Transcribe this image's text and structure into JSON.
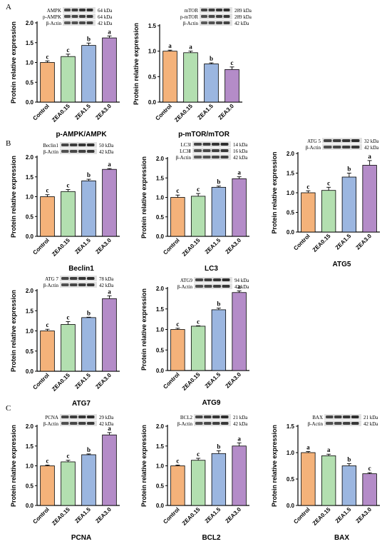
{
  "panel_letters": [
    "A",
    "B",
    "C"
  ],
  "common": {
    "ylabel": "Protein relative expression",
    "categories": [
      "Control",
      "ZEA0.15",
      "ZEA1.5",
      "ZEA3.0"
    ],
    "bar_colors": [
      "#f4b27a",
      "#b3dfb0",
      "#9bb6e0",
      "#b48cc8"
    ]
  },
  "chart_data": [
    {
      "type": "bar",
      "panel": "A",
      "title": "p-AMPK/AMPK",
      "categories": [
        "Control",
        "ZEA0.15",
        "ZEA1.5",
        "ZEA3.0"
      ],
      "values": [
        1.0,
        1.15,
        1.43,
        1.62
      ],
      "errors": [
        0.04,
        0.06,
        0.06,
        0.05
      ],
      "letters": [
        "c",
        "c",
        "b",
        "a"
      ],
      "ylim": [
        0,
        2.0
      ],
      "yticks": [
        "0.0",
        "0.5",
        "1.0",
        "1.5",
        "2.0"
      ],
      "xlabel": "",
      "ylabel": "Protein relative expression",
      "blot": {
        "rows": [
          "AMPK",
          "p-AMPK",
          "β-Actin"
        ],
        "kda": [
          "64 kDa",
          "64 kDa",
          "42 kDa"
        ]
      }
    },
    {
      "type": "bar",
      "panel": "A",
      "title": "p-mTOR/mTOR",
      "categories": [
        "Control",
        "ZEA0.15",
        "ZEA1.5",
        "ZEA3.0"
      ],
      "values": [
        1.0,
        0.97,
        0.75,
        0.64
      ],
      "errors": [
        0.02,
        0.03,
        0.02,
        0.05
      ],
      "letters": [
        "a",
        "a",
        "b",
        "c"
      ],
      "ylim": [
        0,
        1.5
      ],
      "yticks": [
        "0.0",
        "0.5",
        "1.0",
        "1.5"
      ],
      "xlabel": "",
      "ylabel": "Protein relative expression",
      "blot": {
        "rows": [
          "mTOR",
          "p-mTOR",
          "β-Actin"
        ],
        "kda": [
          "289 kDa",
          "289 kDa",
          "42 kDa"
        ]
      }
    },
    {
      "type": "bar",
      "panel": "B",
      "title": "Beclin1",
      "categories": [
        "Control",
        "ZEA0.15",
        "ZEA1.5",
        "ZEA3.0"
      ],
      "values": [
        1.0,
        1.13,
        1.4,
        1.69
      ],
      "errors": [
        0.05,
        0.05,
        0.04,
        0.02
      ],
      "letters": [
        "c",
        "c",
        "b",
        "a"
      ],
      "ylim": [
        0,
        2.0
      ],
      "yticks": [
        "0.0",
        "0.5",
        "1.0",
        "1.5",
        "2.0"
      ],
      "xlabel": "",
      "ylabel": "Protein relative expression",
      "blot": {
        "rows": [
          "Beclin1",
          "β-Actin"
        ],
        "kda": [
          "50 kDa",
          "42 kDa"
        ]
      }
    },
    {
      "type": "bar",
      "panel": "B",
      "title": "LC3",
      "categories": [
        "Control",
        "ZEA0.15",
        "ZEA1.5",
        "ZEA3.0"
      ],
      "values": [
        1.0,
        1.03,
        1.26,
        1.48
      ],
      "errors": [
        0.06,
        0.07,
        0.03,
        0.05
      ],
      "letters": [
        "c",
        "c",
        "b",
        "a"
      ],
      "ylim": [
        0,
        2.0
      ],
      "yticks": [
        "0.0",
        "0.5",
        "1.0",
        "1.5",
        "2.0"
      ],
      "xlabel": "",
      "ylabel": "Protein relative expression",
      "blot": {
        "rows": [
          "LC3Ⅰ",
          "LC3Ⅱ",
          "β-Actin"
        ],
        "kda": [
          "14 kDa",
          "16 kDa",
          "42 kDa"
        ]
      }
    },
    {
      "type": "bar",
      "panel": "B",
      "title": "ATG5",
      "categories": [
        "Control",
        "ZEA0.15",
        "ZEA1.5",
        "ZEA3.0"
      ],
      "values": [
        1.0,
        1.06,
        1.4,
        1.7
      ],
      "errors": [
        0.05,
        0.08,
        0.1,
        0.12
      ],
      "letters": [
        "c",
        "c",
        "b",
        "a"
      ],
      "ylim": [
        0,
        2.0
      ],
      "yticks": [
        "0.0",
        "0.5",
        "1.0",
        "1.5",
        "2.0"
      ],
      "xlabel": "",
      "ylabel": "Protein relative expression",
      "blot": {
        "rows": [
          "ATG 5",
          "β-Actin"
        ],
        "kda": [
          "32 kDa",
          "42 kDa"
        ]
      }
    },
    {
      "type": "bar",
      "panel": "B",
      "title": "ATG7",
      "categories": [
        "Control",
        "ZEA0.15",
        "ZEA1.5",
        "ZEA3.0"
      ],
      "values": [
        1.0,
        1.16,
        1.33,
        1.8
      ],
      "errors": [
        0.04,
        0.07,
        0.01,
        0.07
      ],
      "letters": [
        "c",
        "c",
        "b",
        "a"
      ],
      "ylim": [
        0,
        2.0
      ],
      "yticks": [
        "0.0",
        "0.5",
        "1.0",
        "1.5",
        "2.0"
      ],
      "xlabel": "",
      "ylabel": "Protein relative expression",
      "blot": {
        "rows": [
          "ATG 7",
          "β-Actin"
        ],
        "kda": [
          "78 kDa",
          "42 kDa"
        ]
      }
    },
    {
      "type": "bar",
      "panel": "B",
      "title": "ATG9",
      "categories": [
        "Control",
        "ZEA0.15",
        "ZEA1.5",
        "ZEA3.0"
      ],
      "values": [
        1.0,
        1.08,
        1.48,
        1.9
      ],
      "errors": [
        0.03,
        0.01,
        0.04,
        0.04
      ],
      "letters": [
        "c",
        "c",
        "b",
        "a"
      ],
      "ylim": [
        0,
        2.0
      ],
      "yticks": [
        "0.0",
        "0.5",
        "1.0",
        "1.5",
        "2.0"
      ],
      "xlabel": "",
      "ylabel": "Protein relative expression",
      "blot": {
        "rows": [
          "ATG9",
          "β-Actin"
        ],
        "kda": [
          "94 kDa",
          "42 kDa"
        ]
      }
    },
    {
      "type": "bar",
      "panel": "C",
      "title": "PCNA",
      "categories": [
        "Control",
        "ZEA0.15",
        "ZEA1.5",
        "ZEA3.0"
      ],
      "values": [
        1.0,
        1.1,
        1.28,
        1.78
      ],
      "errors": [
        0.02,
        0.04,
        0.02,
        0.06
      ],
      "letters": [
        "c",
        "c",
        "b",
        "a"
      ],
      "ylim": [
        0,
        2.0
      ],
      "yticks": [
        "0.0",
        "0.5",
        "1.0",
        "1.5",
        "2.0"
      ],
      "xlabel": "",
      "ylabel": "Protein relative expression",
      "blot": {
        "rows": [
          "PCNA",
          "β-Actin"
        ],
        "kda": [
          "29 kDa",
          "42 kDa"
        ]
      }
    },
    {
      "type": "bar",
      "panel": "C",
      "title": "BCL2",
      "categories": [
        "Control",
        "ZEA0.15",
        "ZEA1.5",
        "ZEA3.0"
      ],
      "values": [
        1.0,
        1.14,
        1.31,
        1.5
      ],
      "errors": [
        0.02,
        0.05,
        0.07,
        0.08
      ],
      "letters": [
        "c",
        "c",
        "b",
        "a"
      ],
      "ylim": [
        0,
        2.0
      ],
      "yticks": [
        "0.0",
        "0.5",
        "1.0",
        "1.5",
        "2.0"
      ],
      "xlabel": "",
      "ylabel": "Protein relative expression",
      "blot": {
        "rows": [
          "BCL2",
          "β-Actin"
        ],
        "kda": [
          "21 kDa",
          "42 kDa"
        ]
      }
    },
    {
      "type": "bar",
      "panel": "C",
      "title": "BAX",
      "categories": [
        "Control",
        "ZEA0.15",
        "ZEA1.5",
        "ZEA3.0"
      ],
      "values": [
        1.0,
        0.94,
        0.75,
        0.6
      ],
      "errors": [
        0.02,
        0.03,
        0.04,
        0.02
      ],
      "letters": [
        "a",
        "a",
        "b",
        "c"
      ],
      "ylim": [
        0,
        1.5
      ],
      "yticks": [
        "0.0",
        "0.5",
        "1.0",
        "1.5"
      ],
      "xlabel": "",
      "ylabel": "Protein relative expression",
      "blot": {
        "rows": [
          "BAX",
          "β-Actin"
        ],
        "kda": [
          "21 kDa",
          "42 kDa"
        ]
      }
    }
  ]
}
